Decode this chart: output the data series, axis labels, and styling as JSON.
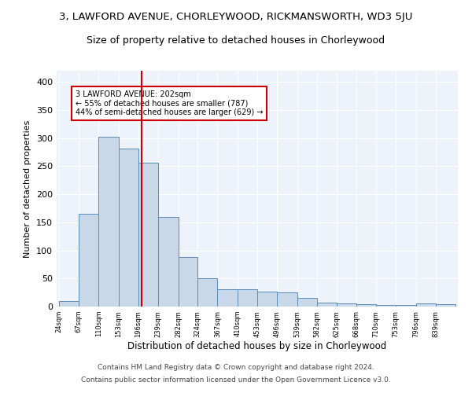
{
  "title1": "3, LAWFORD AVENUE, CHORLEYWOOD, RICKMANSWORTH, WD3 5JU",
  "title2": "Size of property relative to detached houses in Chorleywood",
  "xlabel": "Distribution of detached houses by size in Chorleywood",
  "ylabel": "Number of detached properties",
  "bar_edges": [
    24,
    67,
    110,
    153,
    196,
    239,
    282,
    324,
    367,
    410,
    453,
    496,
    539,
    582,
    625,
    668,
    710,
    753,
    796,
    839,
    882
  ],
  "bar_heights": [
    10,
    165,
    303,
    282,
    256,
    160,
    88,
    50,
    31,
    31,
    27,
    25,
    16,
    7,
    5,
    4,
    3,
    3,
    5,
    4
  ],
  "bar_color": "#c8d8e8",
  "bar_edge_color": "#5b8db8",
  "property_size": 202,
  "vline_color": "#cc0000",
  "annotation_text": "3 LAWFORD AVENUE: 202sqm\n← 55% of detached houses are smaller (787)\n44% of semi-detached houses are larger (629) →",
  "annotation_box_color": "white",
  "annotation_box_edge": "#cc0000",
  "footer1": "Contains HM Land Registry data © Crown copyright and database right 2024.",
  "footer2": "Contains public sector information licensed under the Open Government Licence v3.0.",
  "bg_color": "#eef2fb",
  "ylim": [
    0,
    420
  ],
  "title1_fontsize": 9.5,
  "title2_fontsize": 9
}
